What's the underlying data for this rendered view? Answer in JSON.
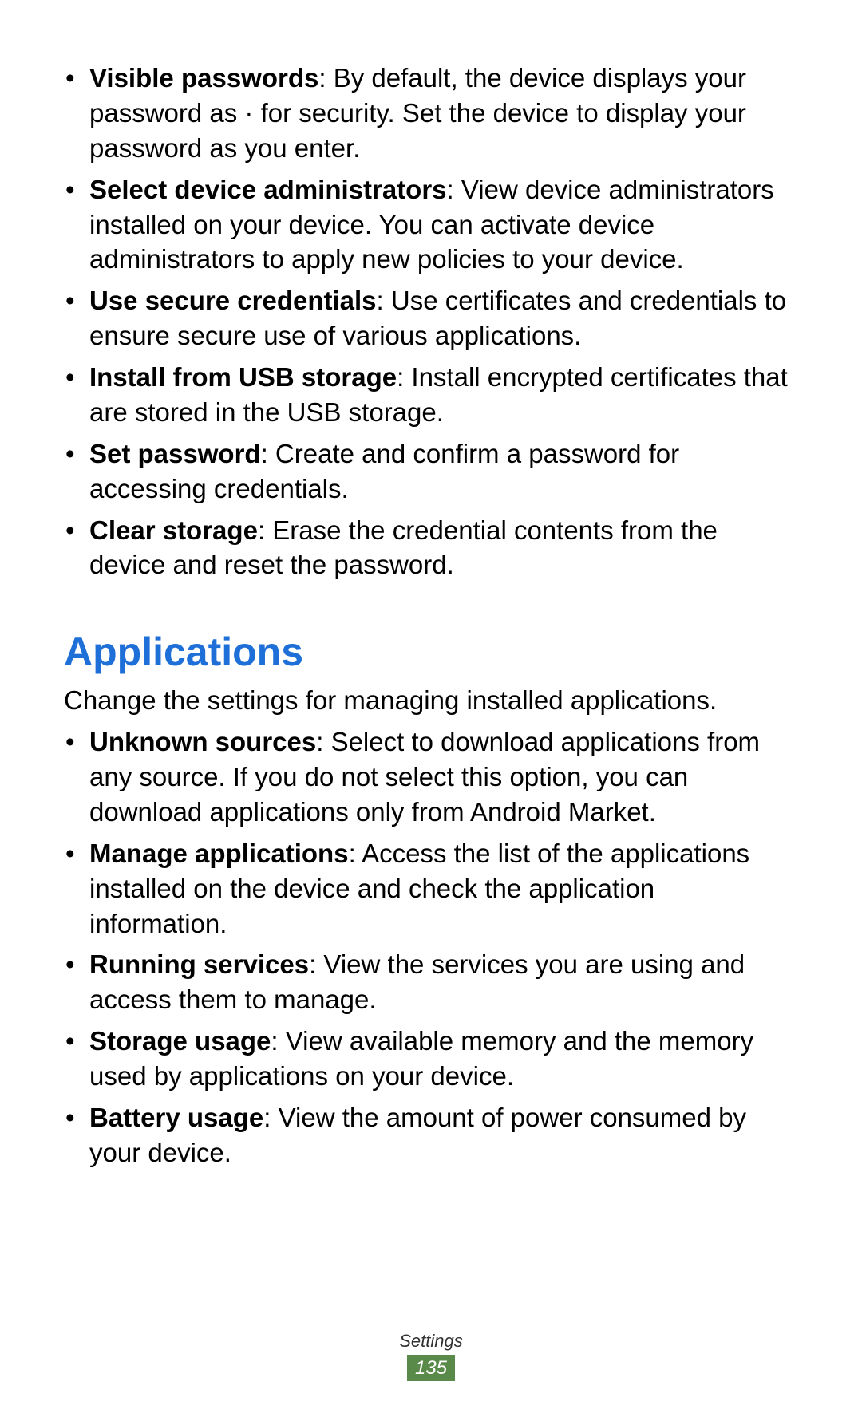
{
  "colors": {
    "text": "#000000",
    "heading": "#1f6fd8",
    "page_badge_bg": "#5a8a4a",
    "page_badge_text": "#ffffff",
    "background": "#ffffff"
  },
  "typography": {
    "body_fontsize": 33,
    "heading_fontsize": 50,
    "footer_label_fontsize": 22,
    "page_num_fontsize": 24
  },
  "list1": {
    "items": [
      {
        "bold": "Visible passwords",
        "rest": ": By default, the device displays your password as · for security. Set the device to display your password as you enter."
      },
      {
        "bold": "Select device administrators",
        "rest": ": View device administrators installed on your device. You can activate device administrators to apply new policies to your device."
      },
      {
        "bold": "Use secure credentials",
        "rest": ": Use certificates and credentials to ensure secure use of various applications."
      },
      {
        "bold": "Install from USB storage",
        "rest": ": Install encrypted certificates that are stored in the USB storage."
      },
      {
        "bold": "Set password",
        "rest": ": Create and confirm a password for accessing credentials."
      },
      {
        "bold": "Clear storage",
        "rest": ": Erase the credential contents from the device and reset the password."
      }
    ]
  },
  "heading": "Applications",
  "intro": "Change the settings for managing installed applications.",
  "list2": {
    "items": [
      {
        "bold": "Unknown sources",
        "rest": ": Select to download applications from any source. If you do not select this option, you can download applications only from Android Market."
      },
      {
        "bold": "Manage applications",
        "rest": ": Access the list of the applications installed on the device and check the application information."
      },
      {
        "bold": "Running services",
        "rest": ": View the services you are using and access them to manage."
      },
      {
        "bold": "Storage usage",
        "rest": ": View available memory and the memory used by applications on your device."
      },
      {
        "bold": "Battery usage",
        "rest": ": View the amount of power consumed by your device."
      }
    ]
  },
  "footer": {
    "label": "Settings",
    "page": "135"
  }
}
